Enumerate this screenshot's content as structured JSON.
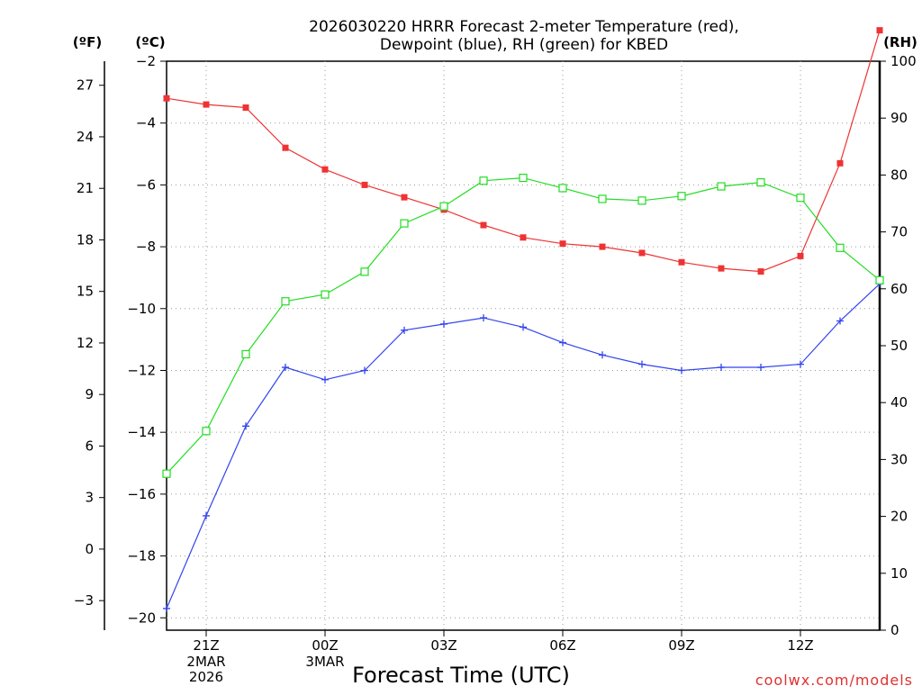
{
  "chart_data": {
    "type": "line",
    "title_lines": [
      "2026030220 HRRR Forecast 2-meter Temperature (red),",
      "Dewpoint (blue), RH (green) for KBED"
    ],
    "xlabel": "Forecast Time (UTC)",
    "credit": "coolwx.com/models",
    "unit_labels": {
      "fahrenheit": "(ºF)",
      "celsius": "(ºC)",
      "rh": "(RH)"
    },
    "x_range": [
      20,
      38
    ],
    "x": [
      20,
      21,
      22,
      23,
      24,
      25,
      26,
      27,
      28,
      29,
      30,
      31,
      32,
      33,
      34,
      35,
      36,
      37,
      38
    ],
    "x_ticks": [
      {
        "x": 21,
        "label": "21Z",
        "sub": [
          "2MAR",
          "2026"
        ]
      },
      {
        "x": 24,
        "label": "00Z",
        "sub": [
          "3MAR"
        ]
      },
      {
        "x": 27,
        "label": "03Z",
        "sub": []
      },
      {
        "x": 30,
        "label": "06Z",
        "sub": []
      },
      {
        "x": 33,
        "label": "09Z",
        "sub": []
      },
      {
        "x": 36,
        "label": "12Z",
        "sub": []
      }
    ],
    "y_celsius_range": [
      -20.4,
      -2
    ],
    "y_celsius_ticks": [
      -2,
      -4,
      -6,
      -8,
      -10,
      -12,
      -14,
      -16,
      -18,
      -20
    ],
    "y_fahrenheit_ticks": [
      27,
      24,
      21,
      18,
      15,
      12,
      9,
      6,
      3,
      0,
      -3
    ],
    "y_rh_range": [
      0,
      100
    ],
    "y_rh_ticks": [
      100,
      90,
      80,
      70,
      60,
      50,
      40,
      30,
      20,
      10,
      0
    ],
    "series": [
      {
        "name": "Temperature",
        "unit": "C",
        "color": "#ee3333",
        "marker": "filled-square",
        "values": [
          -3.2,
          -3.4,
          -3.5,
          -4.8,
          -5.5,
          -6.0,
          -6.4,
          -6.8,
          -7.3,
          -7.7,
          -7.9,
          -8.0,
          -8.2,
          -8.5,
          -8.7,
          -8.8,
          -8.3,
          -5.3,
          -1.0
        ]
      },
      {
        "name": "Dewpoint",
        "unit": "C",
        "color": "#3344ee",
        "marker": "plus",
        "values": [
          -19.7,
          -16.7,
          -13.8,
          -11.9,
          -12.3,
          -12.0,
          -10.7,
          -10.5,
          -10.3,
          -10.6,
          -11.1,
          -11.5,
          -11.8,
          -12.0,
          -11.9,
          -11.9,
          -11.8,
          -10.4,
          -9.2
        ]
      },
      {
        "name": "RH",
        "unit": "%",
        "color": "#22dd22",
        "marker": "open-square",
        "values": [
          27.5,
          35.0,
          48.5,
          57.8,
          59.0,
          63.0,
          71.5,
          74.5,
          79.0,
          79.5,
          77.7,
          75.8,
          75.5,
          76.3,
          78.0,
          78.7,
          76.0,
          67.2,
          61.5
        ]
      }
    ],
    "grid": true
  }
}
